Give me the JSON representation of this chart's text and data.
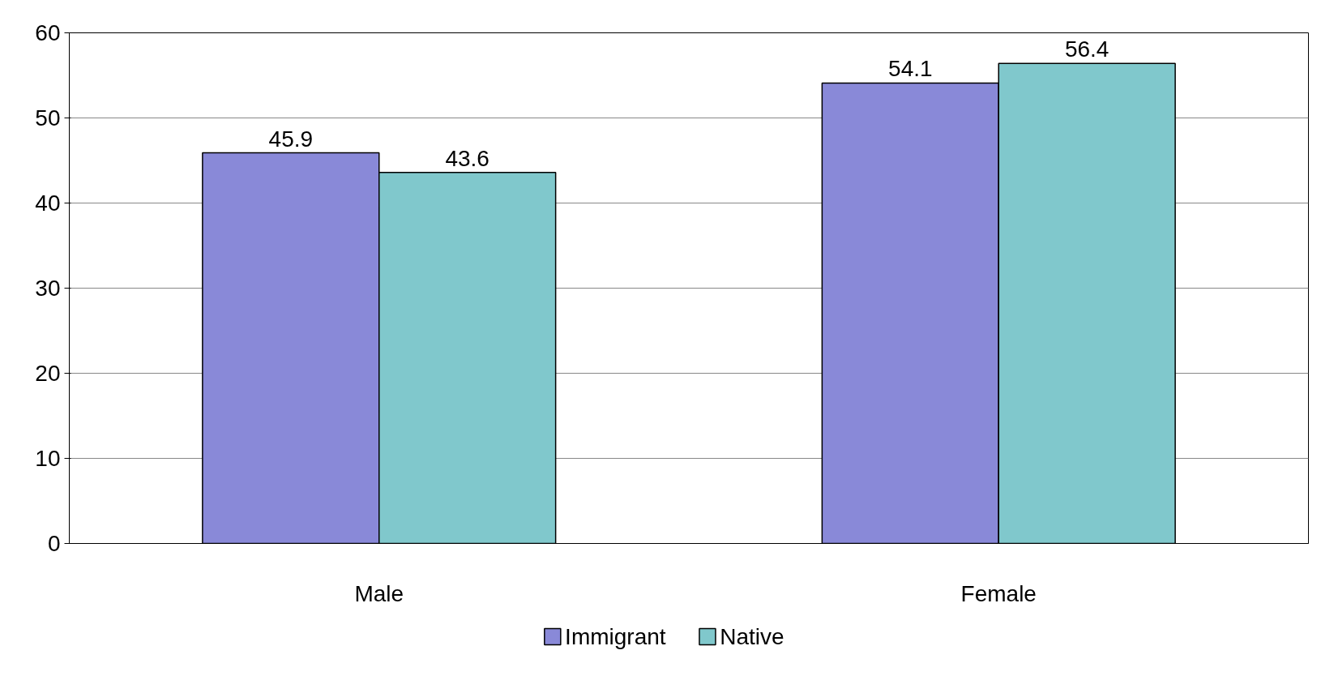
{
  "chart_data": {
    "type": "bar",
    "categories": [
      "Male",
      "Female"
    ],
    "series": [
      {
        "name": "Immigrant",
        "color": "#8989d8",
        "values": [
          45.9,
          54.1
        ]
      },
      {
        "name": "Native",
        "color": "#80c8cc",
        "values": [
          43.6,
          56.4
        ]
      }
    ],
    "ylim": [
      0,
      60
    ],
    "yticks": [
      0,
      10,
      20,
      30,
      40,
      50,
      60
    ],
    "grid": "y",
    "legend": "bottom",
    "data_labels": true
  }
}
